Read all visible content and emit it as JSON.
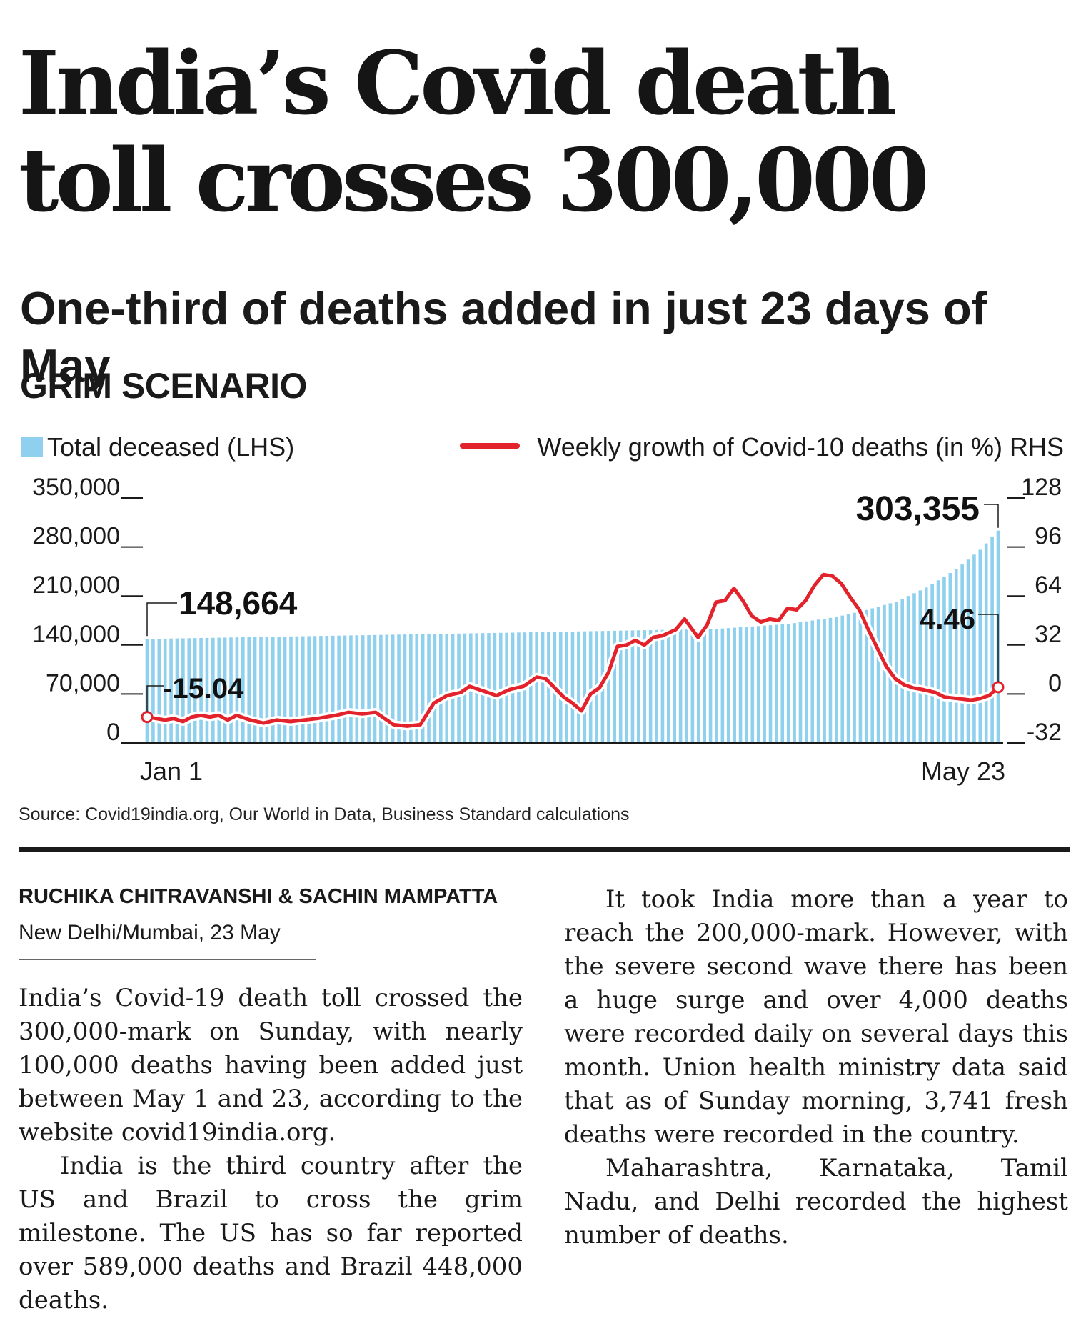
{
  "headline": "India’s Covid death toll crosses 300,000",
  "subheadline": "One-third of deaths added in just 23 days of May",
  "chart_title": "GRIM SCENARIO",
  "source": "Source: Covid19india.org, Our World in Data, Business Standard calculations",
  "byline": "RUCHIKA CHITRAVANSHI & SACHIN MAMPATTA",
  "dateline": "New Delhi/Mumbai, 23 May",
  "article": {
    "left_paragraphs": [
      "India’s Covid-19 death toll crossed the 300,000-mark on Sunday, with nearly 100,000 deaths having been added just between May 1 and 23, according to the website covid19india.org.",
      "India is the third country after the US and Brazil to cross the grim milestone. The US has so far reported over 589,000 deaths and Brazil 448,000 deaths."
    ],
    "right_paragraphs": [
      "It took India more than a year to reach the 200,000-mark. However, with the severe second wave there has been a huge surge and over 4,000 deaths were recorded daily on several days this month. Union health ministry data said that as of Sunday morning, 3,741 fresh deaths were recorded in the country.",
      "Maharashtra, Karnataka, Tamil Nadu, and Delhi recorded the highest number of deaths."
    ]
  },
  "colors": {
    "bar": "#8fd0ee",
    "line": "#e3232b",
    "text": "#1a1a1a"
  },
  "chart_data": {
    "type": "bar",
    "title": "GRIM SCENARIO",
    "legend": {
      "bars": "Total deceased (LHS)",
      "line": "Weekly growth of Covid-10 deaths (in %) RHS"
    },
    "left_axis": {
      "ticks": [
        0,
        70000,
        140000,
        210000,
        280000,
        350000
      ],
      "tick_labels": [
        "0",
        "70,000",
        "140,000",
        "210,000",
        "280,000",
        "350,000"
      ],
      "ylim": [
        0,
        350000
      ]
    },
    "right_axis": {
      "ticks": [
        -32,
        0,
        32,
        64,
        96,
        128
      ],
      "tick_labels": [
        "-32",
        "0",
        "32",
        "64",
        "96",
        "128"
      ],
      "ylim": [
        -32,
        128
      ]
    },
    "x_labels": [
      "Jan 1",
      "May 23"
    ],
    "n_days": 143,
    "total_deceased": {
      "start": 148664,
      "end": 303355,
      "knots": [
        [
          0,
          148664
        ],
        [
          60,
          157500
        ],
        [
          95,
          163000
        ],
        [
          107,
          170000
        ],
        [
          115,
          180000
        ],
        [
          120,
          190000
        ],
        [
          125,
          202000
        ],
        [
          130,
          222000
        ],
        [
          135,
          248000
        ],
        [
          139,
          276000
        ],
        [
          142,
          303355
        ]
      ]
    },
    "weekly_growth_pct": {
      "points": [
        [
          0,
          -15.04
        ],
        [
          2,
          -16
        ],
        [
          4,
          -17
        ],
        [
          6,
          -16
        ],
        [
          8,
          -18
        ],
        [
          10,
          -15
        ],
        [
          12,
          -14
        ],
        [
          14,
          -15
        ],
        [
          16,
          -14
        ],
        [
          18,
          -17
        ],
        [
          20,
          -14
        ],
        [
          23,
          -17
        ],
        [
          26,
          -19
        ],
        [
          29,
          -17
        ],
        [
          32,
          -18
        ],
        [
          35,
          -17
        ],
        [
          38,
          -16
        ],
        [
          42,
          -14
        ],
        [
          45,
          -12
        ],
        [
          48,
          -13
        ],
        [
          51,
          -12
        ],
        [
          55,
          -20
        ],
        [
          58,
          -21
        ],
        [
          61,
          -20
        ],
        [
          64,
          -6
        ],
        [
          67,
          -1
        ],
        [
          70,
          1
        ],
        [
          72,
          5
        ],
        [
          75,
          2
        ],
        [
          78,
          -1
        ],
        [
          81,
          3
        ],
        [
          84,
          5
        ],
        [
          87,
          11
        ],
        [
          89,
          10
        ],
        [
          91,
          4
        ],
        [
          93,
          -2
        ],
        [
          95,
          -6
        ],
        [
          97,
          -11
        ],
        [
          99,
          0
        ],
        [
          101,
          4
        ],
        [
          103,
          14
        ],
        [
          105,
          31
        ],
        [
          107,
          32
        ],
        [
          109,
          35
        ],
        [
          111,
          32
        ],
        [
          113,
          37
        ],
        [
          115,
          38
        ],
        [
          118,
          42
        ],
        [
          120,
          49
        ],
        [
          123,
          37
        ],
        [
          125,
          45
        ],
        [
          127,
          60
        ],
        [
          129,
          61
        ],
        [
          131,
          69
        ],
        [
          133,
          61
        ],
        [
          135,
          51
        ],
        [
          137,
          47
        ],
        [
          139,
          49
        ],
        [
          141,
          48
        ],
        [
          143,
          56
        ],
        [
          145,
          55
        ],
        [
          147,
          61
        ],
        [
          149,
          71
        ],
        [
          151,
          78
        ],
        [
          153,
          77
        ],
        [
          155,
          72
        ],
        [
          157,
          63
        ],
        [
          159,
          55
        ],
        [
          161,
          42
        ],
        [
          163,
          30
        ],
        [
          165,
          18
        ],
        [
          167,
          10
        ],
        [
          169,
          6
        ],
        [
          171,
          4
        ],
        [
          173,
          3
        ],
        [
          176,
          1
        ],
        [
          178,
          -2
        ],
        [
          181,
          -3
        ],
        [
          184,
          -4
        ],
        [
          186,
          -3
        ],
        [
          188,
          -1
        ],
        [
          190,
          4.46
        ]
      ]
    },
    "annotations": [
      {
        "label": "148,664",
        "series": "bars",
        "at": "start"
      },
      {
        "label": "-15.04",
        "series": "line",
        "at": "start"
      },
      {
        "label": "303,355",
        "series": "bars",
        "at": "end"
      },
      {
        "label": "4.46",
        "series": "line",
        "at": "end"
      }
    ]
  }
}
